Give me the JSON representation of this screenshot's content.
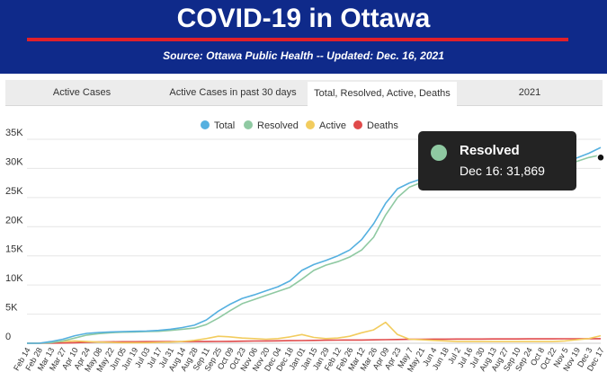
{
  "banner": {
    "title": "COVID-19 in Ottawa",
    "source": "Source:  Ottawa Public Health -- Updated:  Dec. 16, 2021",
    "background_color": "#0f2a8a",
    "rule_color": "#e0202a"
  },
  "tabs": [
    {
      "label": "Active Cases",
      "active": false
    },
    {
      "label": "Active Cases in past 30 days",
      "active": false
    },
    {
      "label": "Total, Resolved, Active, Deaths",
      "active": true
    },
    {
      "label": "2021",
      "active": false
    }
  ],
  "tooltip": {
    "series": "Resolved",
    "text": "Dec 16: 31,869",
    "color": "#8fc9a2"
  },
  "chart_data": {
    "type": "line",
    "grid": true,
    "legend_position": "top-center",
    "ylim": [
      0,
      35000
    ],
    "y_ticks": [
      "0",
      "5K",
      "10K",
      "15K",
      "20K",
      "25K",
      "30K",
      "35K"
    ],
    "x_tick_labels": [
      "Feb 14",
      "Feb 28",
      "Mar 13",
      "Mar 27",
      "Apr 10",
      "Apr 24",
      "May 08",
      "May 22",
      "Jun 05",
      "Jun 19",
      "Jul 03",
      "Jul 17",
      "Jul 31",
      "Aug 14",
      "Aug 28",
      "Sep 11",
      "Sep 25",
      "Oct 09",
      "Oct 23",
      "Nov 06",
      "Nov 20",
      "Dec 04",
      "Dec 18",
      "Jan 01",
      "Jan 15",
      "Jan 29",
      "Feb 12",
      "Feb 26",
      "Mar 12",
      "Mar 26",
      "Apr 09",
      "Apr 23",
      "May 7",
      "May 21",
      "Jun 4",
      "Jun 18",
      "Jul 2",
      "Jul 16",
      "Jul 30",
      "Aug 13",
      "Aug 27",
      "Sep 10",
      "Sep 24",
      "Oct 8",
      "Oct 22",
      "Nov 5",
      "Nov 19",
      "Dec 3",
      "Dec 17"
    ],
    "series": [
      {
        "name": "Total",
        "color": "#55b0e0",
        "values": [
          0,
          0,
          300,
          700,
          1300,
          1700,
          1850,
          1950,
          2000,
          2050,
          2100,
          2200,
          2400,
          2700,
          3100,
          4000,
          5500,
          6700,
          7700,
          8300,
          9000,
          9700,
          10700,
          12500,
          13500,
          14200,
          15000,
          16000,
          17800,
          20500,
          24000,
          26500,
          27500,
          28200,
          28600,
          28800,
          28900,
          29000,
          29100,
          29300,
          29500,
          29700,
          29900,
          30100,
          30400,
          31000,
          31800,
          32600,
          33600
        ]
      },
      {
        "name": "Resolved",
        "color": "#8fc9a2",
        "values": [
          0,
          0,
          100,
          400,
          900,
          1400,
          1650,
          1800,
          1900,
          1950,
          2000,
          2050,
          2200,
          2400,
          2600,
          3200,
          4300,
          5600,
          6800,
          7500,
          8200,
          8900,
          9600,
          11000,
          12500,
          13400,
          14000,
          14800,
          16000,
          18200,
          22000,
          25000,
          26800,
          27600,
          28100,
          28400,
          28600,
          28700,
          28800,
          29000,
          29200,
          29400,
          29600,
          29800,
          30100,
          30600,
          31200,
          31869,
          32300
        ]
      },
      {
        "name": "Active",
        "color": "#f2cc5e",
        "values": [
          0,
          0,
          200,
          300,
          400,
          300,
          200,
          150,
          100,
          100,
          100,
          150,
          200,
          300,
          500,
          800,
          1200,
          1100,
          900,
          800,
          700,
          800,
          1100,
          1500,
          1000,
          800,
          900,
          1200,
          1800,
          2300,
          3600,
          1500,
          700,
          600,
          500,
          400,
          300,
          300,
          300,
          300,
          300,
          300,
          300,
          300,
          300,
          400,
          600,
          800,
          1300
        ]
      },
      {
        "name": "Deaths",
        "color": "#e04a4a",
        "values": [
          0,
          0,
          10,
          40,
          100,
          170,
          220,
          250,
          260,
          265,
          270,
          272,
          275,
          280,
          290,
          300,
          310,
          330,
          350,
          380,
          400,
          420,
          440,
          460,
          500,
          520,
          540,
          550,
          560,
          580,
          620,
          650,
          680,
          700,
          710,
          715,
          720,
          725,
          730,
          735,
          740,
          745,
          750,
          755,
          760,
          765,
          770,
          780,
          790
        ]
      }
    ],
    "highlight_point": {
      "series": "Resolved",
      "x_label": "Dec 16",
      "value": 31869
    }
  }
}
